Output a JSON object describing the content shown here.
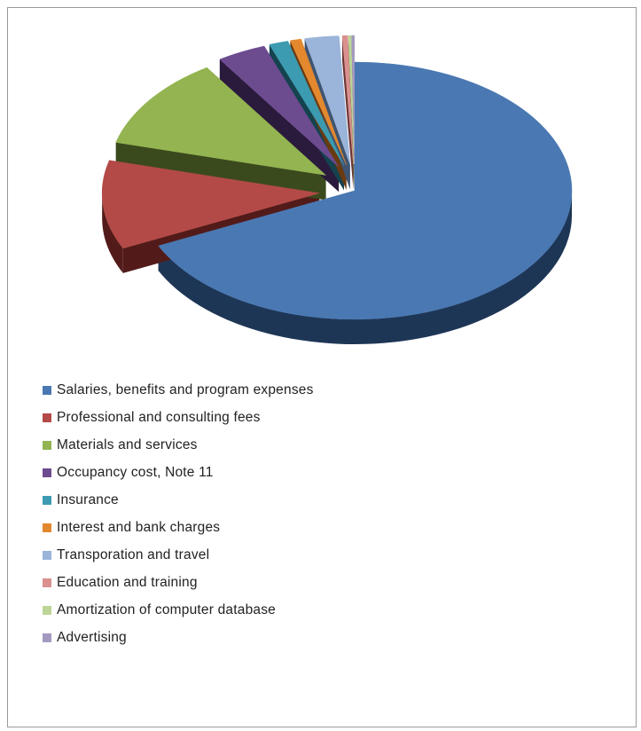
{
  "chart_data": {
    "type": "pie",
    "title": "",
    "legend_position": "bottom",
    "style": "3d-exploded",
    "slices": [
      {
        "label": "Salaries, benefits and program expenses",
        "value": 67.0,
        "color": "#4a78b2",
        "side_color": "#1e3656"
      },
      {
        "label": "Professional and consulting fees",
        "value": 11.0,
        "color": "#b34a47",
        "side_color": "#521b1a"
      },
      {
        "label": "Materials and services",
        "value": 11.5,
        "color": "#93b450",
        "side_color": "#3b4a1d"
      },
      {
        "label": "Occupancy cost, Note 11",
        "value": 3.6,
        "color": "#6c4b8f",
        "side_color": "#2a1a3c"
      },
      {
        "label": "Insurance",
        "value": 1.4,
        "color": "#3c9bb1",
        "side_color": "#14434f"
      },
      {
        "label": "Interest and bank charges",
        "value": 0.8,
        "color": "#e3882e",
        "side_color": "#6a3a10"
      },
      {
        "label": "Transporation and travel",
        "value": 2.5,
        "color": "#9ab4da",
        "side_color": "#3f5470"
      },
      {
        "label": "Education and training",
        "value": 0.4,
        "color": "#d9908e",
        "side_color": "#6b3635"
      },
      {
        "label": "Amortization of computer database",
        "value": 0.2,
        "color": "#bcd596",
        "side_color": "#5b6b40"
      },
      {
        "label": "Advertising",
        "value": 0.2,
        "color": "#a49abf",
        "side_color": "#4a4460"
      }
    ]
  }
}
